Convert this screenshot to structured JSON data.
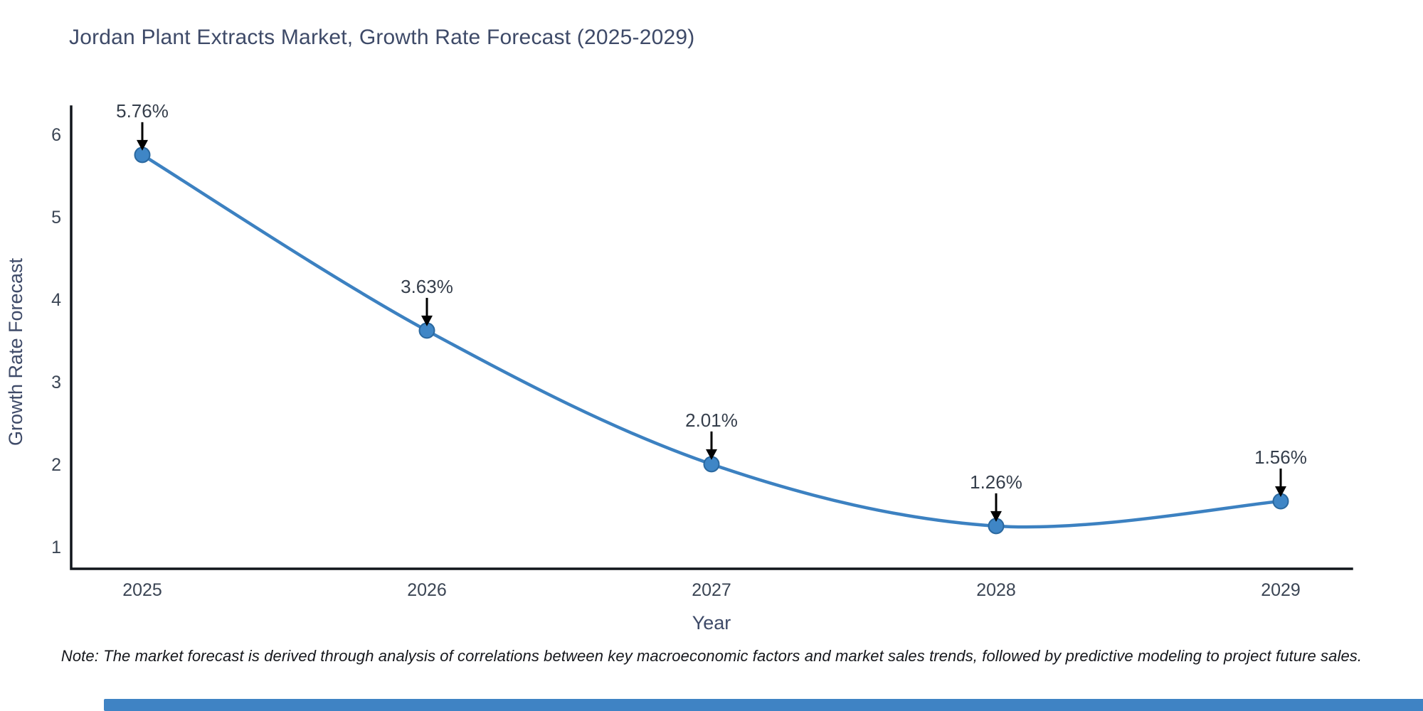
{
  "title": "Jordan Plant Extracts Market, Growth Rate Forecast (2025-2029)",
  "note": "Note: The market forecast is derived through analysis of correlations between key macroeconomic factors and market sales trends, followed by predictive modeling to project future sales.",
  "colors": {
    "title_text": "#3e4a68",
    "tick_text": "#3b4554",
    "annotation_text": "#353e4b",
    "axis_line": "#10151b",
    "series_line": "#3c81c1",
    "marker_fill": "#3f86c6",
    "marker_edge": "#2a689f",
    "arrow": "#000000",
    "note_text": "#15171c",
    "footer_bar": "#3f83c4"
  },
  "chart_data": {
    "type": "line",
    "title": "Jordan Plant Extracts Market, Growth Rate Forecast (2025-2029)",
    "xlabel": "Year",
    "ylabel": "Growth Rate Forecast",
    "categories": [
      "2025",
      "2026",
      "2027",
      "2028",
      "2029"
    ],
    "values": [
      5.76,
      3.63,
      2.01,
      1.26,
      1.56
    ],
    "point_labels": [
      "5.76%",
      "3.63%",
      "2.01%",
      "1.26%",
      "1.56%"
    ],
    "yticks": [
      1,
      2,
      3,
      4,
      5,
      6
    ],
    "ylim": [
      0.7,
      6.35
    ],
    "grid": false,
    "legend": "none",
    "annotation_style": "percentage label with black down-arrow above each point",
    "line_shape": "smooth-spline"
  }
}
